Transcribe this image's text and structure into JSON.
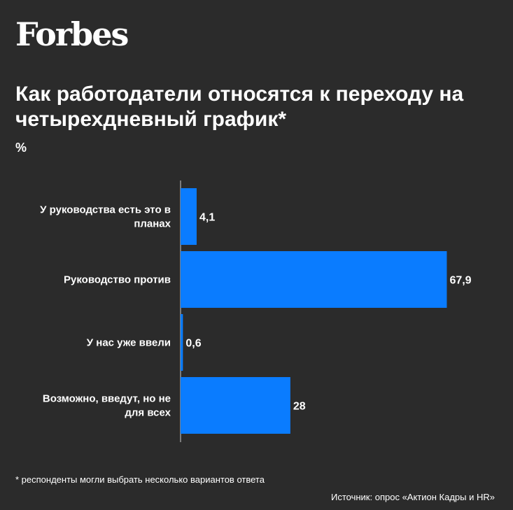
{
  "header": {
    "logo": "Forbes"
  },
  "colors": {
    "background": "#2b2b2b",
    "bar": "#0a7cff",
    "text": "#ffffff",
    "axis": "#cccccc"
  },
  "chart_data": {
    "type": "bar",
    "orientation": "horizontal",
    "title": "Как работодатели относятся к переходу на четырехдневный график*",
    "unit": "%",
    "categories": [
      "У руководства есть это в планах",
      "Руководство против",
      "У нас уже ввели",
      "Возможно, введут, но не для всех"
    ],
    "values": [
      4.1,
      67.9,
      0.6,
      28
    ],
    "value_labels": [
      "4,1",
      "67,9",
      "0,6",
      "28"
    ],
    "xlim": [
      0,
      68
    ]
  },
  "footnote": "* респонденты могли выбрать несколько вариантов ответа",
  "source": "Источник: опрос «Актион Кадры и HR»"
}
